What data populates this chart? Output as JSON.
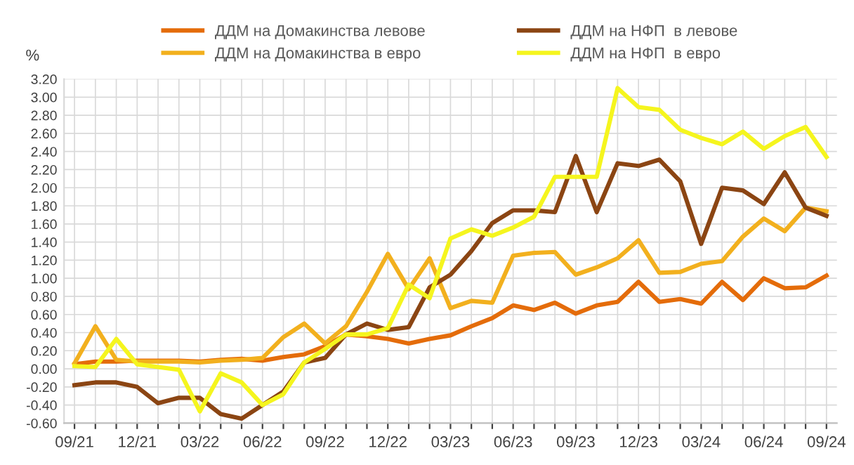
{
  "chart_data": {
    "type": "line",
    "ylabel": "%",
    "categories": [
      "09/21",
      null,
      null,
      "12/21",
      null,
      null,
      "03/22",
      null,
      null,
      "06/22",
      null,
      null,
      "09/22",
      null,
      null,
      "12/22",
      null,
      null,
      "03/23",
      null,
      null,
      "06/23",
      null,
      null,
      "09/23",
      null,
      null,
      "12/23",
      null,
      null,
      "03/24",
      null,
      null,
      "06/24",
      null,
      null,
      "09/24"
    ],
    "series": [
      {
        "name": "ДДМ на Домакинства левове",
        "color": "#e46c0a",
        "values": [
          0.05,
          0.08,
          0.08,
          0.09,
          0.09,
          0.09,
          0.08,
          0.1,
          0.11,
          0.09,
          0.13,
          0.16,
          0.25,
          0.38,
          0.36,
          0.33,
          0.28,
          0.33,
          0.37,
          0.47,
          0.56,
          0.7,
          0.65,
          0.73,
          0.61,
          0.7,
          0.74,
          0.96,
          0.74,
          0.77,
          0.72,
          0.96,
          0.76,
          1.0,
          0.89,
          0.9,
          1.03
        ]
      },
      {
        "name": "ДДМ на Домакинства в евро",
        "color": "#f2b01e",
        "values": [
          0.06,
          0.47,
          0.1,
          0.08,
          0.08,
          0.08,
          0.07,
          0.09,
          0.1,
          0.12,
          0.35,
          0.5,
          0.28,
          0.47,
          0.85,
          1.27,
          0.88,
          1.22,
          0.67,
          0.75,
          0.73,
          1.25,
          1.28,
          1.29,
          1.04,
          1.12,
          1.22,
          1.42,
          1.06,
          1.07,
          1.16,
          1.19,
          1.46,
          1.66,
          1.52,
          1.78,
          1.74
        ]
      },
      {
        "name": "ДДМ на НФП  в левове",
        "color": "#8b4513",
        "values": [
          -0.18,
          -0.15,
          -0.15,
          -0.2,
          -0.38,
          -0.32,
          -0.32,
          -0.5,
          -0.55,
          -0.4,
          -0.25,
          0.07,
          0.12,
          0.38,
          0.5,
          0.43,
          0.46,
          0.9,
          1.04,
          1.3,
          1.61,
          1.75,
          1.75,
          1.73,
          2.35,
          1.73,
          2.27,
          2.24,
          2.31,
          2.07,
          1.38,
          2.0,
          1.97,
          1.82,
          2.17,
          1.78,
          1.69
        ]
      },
      {
        "name": "ДДМ на НФП  в евро",
        "color": "#f5f51e",
        "values": [
          0.03,
          0.02,
          0.33,
          0.05,
          0.02,
          -0.01,
          -0.47,
          -0.05,
          -0.15,
          -0.4,
          -0.28,
          0.07,
          0.22,
          0.38,
          0.38,
          0.45,
          0.93,
          0.78,
          1.44,
          1.54,
          1.47,
          1.56,
          1.68,
          2.12,
          2.12,
          2.12,
          3.1,
          2.89,
          2.86,
          2.64,
          2.55,
          2.48,
          2.62,
          2.43,
          2.57,
          2.67,
          2.34
        ]
      }
    ],
    "ylim": [
      -0.6,
      3.2
    ],
    "yticks": [
      {
        "value": -0.6,
        "label": "-0.60"
      },
      {
        "value": -0.4,
        "label": "-0.40"
      },
      {
        "value": -0.2,
        "label": "-0.20"
      },
      {
        "value": 0,
        "label": "0.00"
      },
      {
        "value": 0.2,
        "label": "0.20"
      },
      {
        "value": 0.4,
        "label": "0.40"
      },
      {
        "value": 0.6,
        "label": "0.60"
      },
      {
        "value": 0.8,
        "label": "0.80"
      },
      {
        "value": 1.0,
        "label": "1.00"
      },
      {
        "value": 1.2,
        "label": "1.20"
      },
      {
        "value": 1.4,
        "label": "1.40"
      },
      {
        "value": 1.6,
        "label": "1.60"
      },
      {
        "value": 1.8,
        "label": "1.80"
      },
      {
        "value": 2.0,
        "label": "2.00"
      },
      {
        "value": 2.2,
        "label": "2.20"
      },
      {
        "value": 2.4,
        "label": "2.40"
      },
      {
        "value": 2.6,
        "label": "2.60"
      },
      {
        "value": 2.8,
        "label": "2.80"
      },
      {
        "value": 3.0,
        "label": "3.00"
      },
      {
        "value": 3.2,
        "label": "3.20"
      }
    ],
    "grid": true,
    "legend": "top",
    "marker": "none",
    "line_style": "solid"
  }
}
